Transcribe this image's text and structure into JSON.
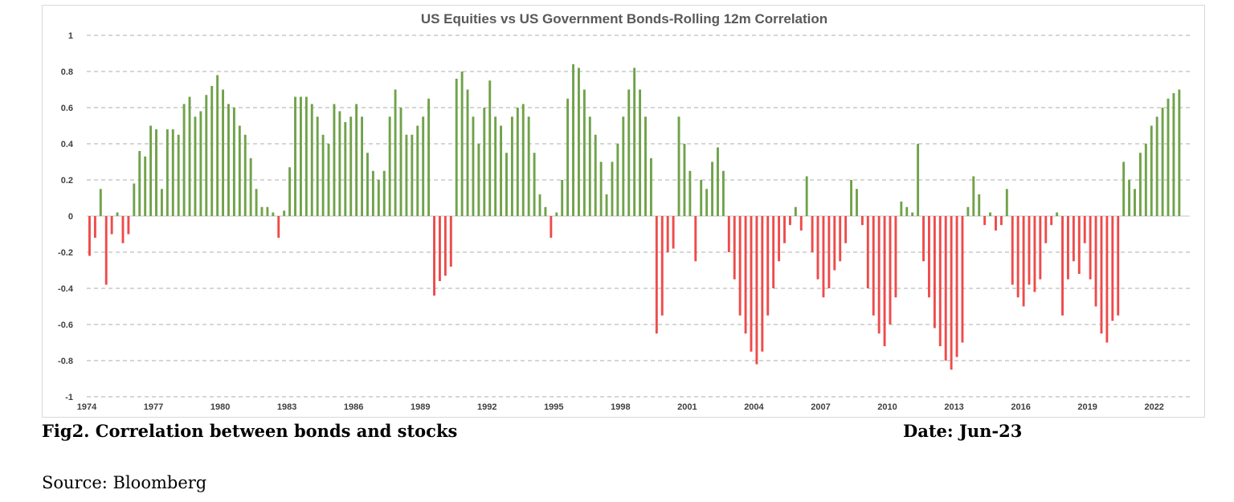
{
  "figure": {
    "caption": "Fig2. Correlation between bonds and stocks",
    "date": "Date: Jun-23",
    "source": "Source: Bloomberg"
  },
  "chart_data": {
    "type": "bar",
    "title": "US Equities vs US Government Bonds-Rolling 12m Correlation",
    "xlabel": "",
    "ylabel": "",
    "ylim": [
      -1,
      1
    ],
    "yticks": [
      1,
      0.8,
      0.6,
      0.4,
      0.2,
      0,
      -0.2,
      -0.4,
      -0.6,
      -0.8,
      -1
    ],
    "ytick_labels": [
      "1",
      "0.8",
      "0.6",
      "0.4",
      "0.2",
      "0",
      "-0.2",
      "-0.4",
      "-0.6",
      "-0.8",
      "-1"
    ],
    "xticks": [
      "1974",
      "1977",
      "1980",
      "1983",
      "1986",
      "1989",
      "1992",
      "1995",
      "1998",
      "2001",
      "2004",
      "2007",
      "2010",
      "2013",
      "2016",
      "2019",
      "2022"
    ],
    "grid": true,
    "colors": {
      "positive": "#70A24A",
      "negative": "#EE4B4B",
      "grid": "#c8c8c8",
      "axis": "#d0d0d0"
    },
    "frequency": "quarterly",
    "x_start": "1974-Q1",
    "values": [
      -0.22,
      -0.12,
      0.15,
      -0.38,
      -0.1,
      0.02,
      -0.15,
      -0.1,
      0.18,
      0.36,
      0.33,
      0.5,
      0.48,
      0.15,
      0.48,
      0.48,
      0.45,
      0.62,
      0.66,
      0.55,
      0.58,
      0.67,
      0.72,
      0.78,
      0.7,
      0.62,
      0.6,
      0.5,
      0.45,
      0.32,
      0.15,
      0.05,
      0.05,
      0.02,
      -0.12,
      0.03,
      0.27,
      0.66,
      0.66,
      0.66,
      0.62,
      0.55,
      0.45,
      0.4,
      0.62,
      0.58,
      0.52,
      0.55,
      0.62,
      0.55,
      0.35,
      0.25,
      0.2,
      0.25,
      0.55,
      0.7,
      0.6,
      0.45,
      0.45,
      0.5,
      0.55,
      0.65,
      -0.44,
      -0.36,
      -0.33,
      -0.28,
      0.76,
      0.8,
      0.7,
      0.55,
      0.4,
      0.6,
      0.75,
      0.55,
      0.5,
      0.35,
      0.55,
      0.6,
      0.62,
      0.55,
      0.35,
      0.12,
      0.05,
      -0.12,
      0.02,
      0.2,
      0.65,
      0.84,
      0.82,
      0.7,
      0.55,
      0.45,
      0.3,
      0.12,
      0.3,
      0.4,
      0.55,
      0.7,
      0.82,
      0.7,
      0.55,
      0.32,
      -0.65,
      -0.55,
      -0.2,
      -0.18,
      0.55,
      0.4,
      0.25,
      -0.25,
      0.2,
      0.15,
      0.3,
      0.38,
      0.25,
      -0.2,
      -0.35,
      -0.55,
      -0.65,
      -0.75,
      -0.82,
      -0.75,
      -0.55,
      -0.4,
      -0.25,
      -0.15,
      -0.05,
      0.05,
      -0.08,
      0.22,
      -0.2,
      -0.35,
      -0.45,
      -0.4,
      -0.3,
      -0.25,
      -0.15,
      0.2,
      0.15,
      -0.05,
      -0.4,
      -0.55,
      -0.65,
      -0.72,
      -0.6,
      -0.45,
      0.08,
      0.05,
      0.02,
      0.4,
      -0.25,
      -0.45,
      -0.62,
      -0.72,
      -0.8,
      -0.85,
      -0.78,
      -0.7,
      0.05,
      0.22,
      0.12,
      -0.05,
      0.02,
      -0.08,
      -0.05,
      0.15,
      -0.38,
      -0.45,
      -0.5,
      -0.38,
      -0.42,
      -0.35,
      -0.15,
      -0.05,
      0.02,
      -0.55,
      -0.35,
      -0.25,
      -0.32,
      -0.15,
      -0.35,
      -0.5,
      -0.65,
      -0.7,
      -0.58,
      -0.55,
      0.3,
      0.2,
      0.15,
      0.35,
      0.4,
      0.5,
      0.55,
      0.6,
      0.65,
      0.68,
      0.7
    ]
  }
}
